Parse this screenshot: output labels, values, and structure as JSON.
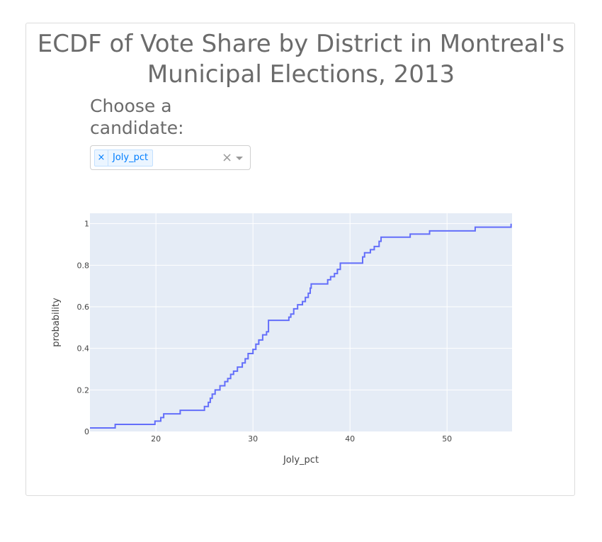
{
  "title": "ECDF of Vote Share by District in Montreal's Municipal Elections, 2013",
  "dropdown": {
    "label": "Choose a candidate:",
    "selected": "Joly_pct",
    "remove_glyph": "×",
    "clear_glyph": "×",
    "icons": [
      "remove-chip-icon",
      "clear-icon",
      "caret-down-icon"
    ]
  },
  "colors": {
    "line": "#636efa",
    "plot_bg": "#e5ecf6",
    "grid": "#ffffff"
  },
  "chart_data": {
    "type": "line",
    "subtype": "ecdf-step",
    "xlabel": "Joly_pct",
    "ylabel": "probability",
    "xlim": [
      13.2,
      56.7
    ],
    "ylim": [
      0,
      1.05
    ],
    "x_ticks": [
      20,
      30,
      40,
      50
    ],
    "y_ticks": [
      0,
      0.2,
      0.4,
      0.6,
      0.8,
      1
    ],
    "y_tick_labels": [
      "0",
      "0.2",
      "0.4",
      "0.6",
      "0.8",
      "1"
    ],
    "grid": true,
    "series": [
      {
        "x": [
          13.2,
          15.8,
          19.9,
          20.5,
          20.8,
          22.5,
          25.0,
          25.4,
          25.6,
          25.8,
          26.1,
          26.6,
          27.1,
          27.4,
          27.7,
          28.0,
          28.4,
          28.9,
          29.2,
          29.5,
          30.0,
          30.3,
          30.6,
          31.0,
          31.4,
          31.6,
          33.7,
          33.9,
          34.2,
          34.6,
          35.1,
          35.4,
          35.7,
          35.9,
          36.0,
          37.7,
          38.0,
          38.4,
          38.7,
          39.0,
          41.3,
          41.5,
          42.1,
          42.5,
          43.0,
          43.2,
          46.2,
          48.2,
          52.9,
          56.6
        ],
        "y": [
          0.017,
          0.034,
          0.05,
          0.067,
          0.085,
          0.102,
          0.12,
          0.14,
          0.16,
          0.18,
          0.2,
          0.22,
          0.24,
          0.255,
          0.275,
          0.29,
          0.31,
          0.33,
          0.35,
          0.375,
          0.395,
          0.42,
          0.44,
          0.465,
          0.48,
          0.535,
          0.55,
          0.565,
          0.59,
          0.61,
          0.625,
          0.645,
          0.665,
          0.69,
          0.71,
          0.73,
          0.745,
          0.76,
          0.78,
          0.81,
          0.84,
          0.86,
          0.875,
          0.89,
          0.915,
          0.935,
          0.95,
          0.965,
          0.983,
          1.0
        ]
      }
    ]
  }
}
